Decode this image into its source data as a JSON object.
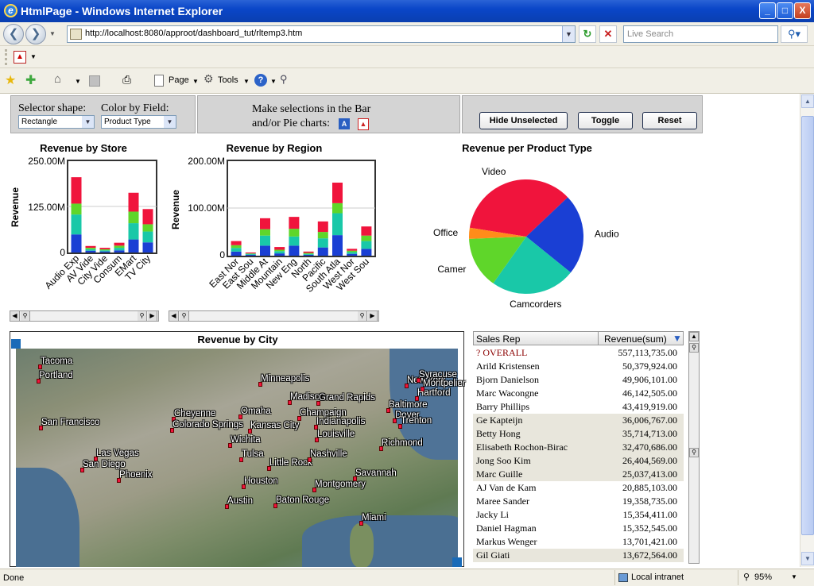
{
  "window": {
    "title": "HtmlPage - Windows Internet Explorer",
    "min": "_",
    "max": "□",
    "close": "X"
  },
  "address": {
    "url": "http://localhost:8080/approot/dashboard_tut/rltemp3.htm"
  },
  "search": {
    "placeholder": "Live Search"
  },
  "toolbar": {
    "page": "Page",
    "tools": "Tools"
  },
  "status": {
    "left": "Done",
    "zone": "Local intranet",
    "zoom": "95%"
  },
  "controls": {
    "selector_label": "Selector shape:",
    "selector_value": "Rectangle",
    "color_label": "Color by Field:",
    "color_value": "Product Type",
    "make_selections": "Make selections in the Bar",
    "make_selections2": "and/or Pie charts:",
    "hide_unselected": "Hide Unselected",
    "toggle": "Toggle",
    "reset": "Reset"
  },
  "colors": {
    "blue": "#1a3fd4",
    "teal": "#19c8a8",
    "green": "#5fd62a",
    "red": "#f0143c",
    "orange": "#ff8c1a"
  },
  "chart_data": [
    {
      "type": "bar",
      "title": "Revenue by Store",
      "ylabel": "Revenue",
      "yticks": [
        "250.00M",
        "125.00M",
        "0"
      ],
      "ylim": [
        0,
        250
      ],
      "categories": [
        "Audio Exp",
        "AV Vide",
        "City Vide",
        "Consum",
        "EMart",
        "TV City"
      ],
      "series": [
        {
          "color": "blue",
          "values": [
            50,
            5,
            3,
            6,
            36,
            28
          ]
        },
        {
          "color": "teal",
          "values": [
            55,
            4,
            3,
            7,
            45,
            30
          ]
        },
        {
          "color": "green",
          "values": [
            30,
            4,
            3,
            6,
            32,
            20
          ]
        },
        {
          "color": "red",
          "values": [
            73,
            5,
            4,
            8,
            52,
            42
          ]
        }
      ]
    },
    {
      "type": "bar",
      "title": "Revenue by Region",
      "ylabel": "Revenue",
      "yticks": [
        "200.00M",
        "100.00M",
        "0"
      ],
      "ylim": [
        0,
        200
      ],
      "categories": [
        "East Nor",
        "East Sou",
        "Middle At",
        "Mountain",
        "New Eng",
        "North",
        "Pacific",
        "South Atla",
        "West Nor",
        "West Sou"
      ],
      "series": [
        {
          "color": "blue",
          "values": [
            9,
            2,
            22,
            5,
            22,
            2,
            18,
            45,
            4,
            15
          ]
        },
        {
          "color": "teal",
          "values": [
            8,
            2,
            22,
            5,
            20,
            2,
            20,
            48,
            4,
            17
          ]
        },
        {
          "color": "green",
          "values": [
            6,
            1,
            14,
            3,
            17,
            2,
            14,
            22,
            3,
            12
          ]
        },
        {
          "color": "red",
          "values": [
            9,
            2,
            24,
            6,
            26,
            3,
            23,
            45,
            4,
            20
          ]
        }
      ]
    },
    {
      "type": "pie",
      "title": "Revenue per Product Type",
      "labels": [
        "Video",
        "Audio",
        "Camcorders",
        "Camer",
        "Office"
      ],
      "values": [
        34,
        22,
        23,
        14,
        3
      ],
      "colors": [
        "red",
        "blue",
        "teal",
        "green",
        "orange"
      ]
    }
  ],
  "map": {
    "title": "Revenue by City",
    "cities": [
      {
        "name": "Tacoma",
        "x": 51,
        "y": 338
      },
      {
        "name": "Portland",
        "x": 49,
        "y": 356
      },
      {
        "name": "San Francisco",
        "x": 52,
        "y": 415
      },
      {
        "name": "Las Vegas",
        "x": 121,
        "y": 454
      },
      {
        "name": "San Diego",
        "x": 104,
        "y": 468
      },
      {
        "name": "Phoenix",
        "x": 150,
        "y": 481
      },
      {
        "name": "Cheyenne",
        "x": 219,
        "y": 404
      },
      {
        "name": "Colorado Springs",
        "x": 217,
        "y": 418
      },
      {
        "name": "Minneapolis",
        "x": 328,
        "y": 360
      },
      {
        "name": "Omaha",
        "x": 303,
        "y": 401
      },
      {
        "name": "Kansas City",
        "x": 315,
        "y": 419
      },
      {
        "name": "Wichita",
        "x": 290,
        "y": 437
      },
      {
        "name": "Tulsa",
        "x": 304,
        "y": 455
      },
      {
        "name": "Little Rock",
        "x": 339,
        "y": 466
      },
      {
        "name": "Houston",
        "x": 307,
        "y": 489
      },
      {
        "name": "Austin",
        "x": 286,
        "y": 514
      },
      {
        "name": "Baton Rouge",
        "x": 347,
        "y": 513
      },
      {
        "name": "Madison",
        "x": 365,
        "y": 383
      },
      {
        "name": "Grand Rapids",
        "x": 401,
        "y": 384
      },
      {
        "name": "Champaign",
        "x": 377,
        "y": 403
      },
      {
        "name": "Indianapolis",
        "x": 398,
        "y": 414
      },
      {
        "name": "Louisville",
        "x": 399,
        "y": 430
      },
      {
        "name": "Nashville",
        "x": 390,
        "y": 455
      },
      {
        "name": "Montgomery",
        "x": 396,
        "y": 493
      },
      {
        "name": "Savannah",
        "x": 447,
        "y": 479
      },
      {
        "name": "Miami",
        "x": 455,
        "y": 535
      },
      {
        "name": "Richmond",
        "x": 480,
        "y": 441
      },
      {
        "name": "Baltimore",
        "x": 489,
        "y": 393
      },
      {
        "name": "Dover",
        "x": 497,
        "y": 406
      },
      {
        "name": "Trenton",
        "x": 504,
        "y": 413
      },
      {
        "name": "New York",
        "x": 512,
        "y": 362
      },
      {
        "name": "Hartford",
        "x": 525,
        "y": 378
      },
      {
        "name": "Syracuse",
        "x": 527,
        "y": 355
      },
      {
        "name": "Montpelier",
        "x": 532,
        "y": 366
      }
    ]
  },
  "table": {
    "col_name": "Sales Rep",
    "col_value": "Revenue(sum)",
    "overall_label": "? OVERALL",
    "overall_value": "557,113,735.00",
    "rows": [
      {
        "name": "Arild Kristensen",
        "value": "50,379,924.00"
      },
      {
        "name": "Bjorn Danielson",
        "value": "49,906,101.00"
      },
      {
        "name": "Marc Wacongne",
        "value": "46,142,505.00"
      },
      {
        "name": "Barry Phillips",
        "value": "43,419,919.00"
      },
      {
        "name": "Ge Kapteijn",
        "value": "36,006,767.00"
      },
      {
        "name": "Betty Hong",
        "value": "35,714,713.00"
      },
      {
        "name": "Elisabeth Rochon-Birac",
        "value": "32,470,686.00"
      },
      {
        "name": "Jong Soo Kim",
        "value": "26,404,569.00"
      },
      {
        "name": "Marc Guille",
        "value": "25,037,413.00"
      },
      {
        "name": "AJ Van de Kam",
        "value": "20,885,103.00"
      },
      {
        "name": "Maree Sander",
        "value": "19,358,735.00"
      },
      {
        "name": "Jacky Li",
        "value": "15,354,411.00"
      },
      {
        "name": "Daniel Hagman",
        "value": "15,352,545.00"
      },
      {
        "name": "Markus Wenger",
        "value": "13,701,421.00"
      },
      {
        "name": "Gil Giati",
        "value": "13,672,564.00"
      }
    ]
  }
}
